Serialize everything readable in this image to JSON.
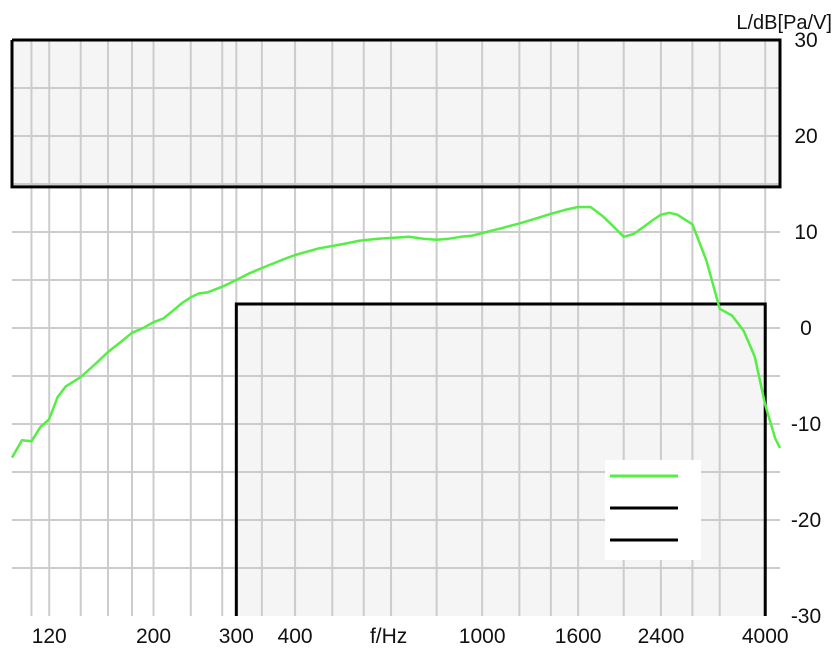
{
  "chart_data": {
    "type": "line",
    "title": "",
    "xlabel": "f/Hz",
    "ylabel": "L/dB[Pa/V]",
    "x_scale": "log",
    "xlim": [
      100,
      4300
    ],
    "ylim": [
      -30,
      30
    ],
    "grid": true,
    "legend_position": "bottom-right",
    "x_tick_labels": [
      "120",
      "200",
      "300",
      "400",
      "f/Hz",
      "1000",
      "1600",
      "2400",
      "4000"
    ],
    "x_tick_values": [
      120,
      200,
      300,
      400,
      null,
      1000,
      1600,
      2400,
      4000
    ],
    "x_gridlines": [
      110,
      120,
      140,
      160,
      180,
      200,
      240,
      280,
      300,
      340,
      400,
      480,
      560,
      640,
      800,
      1000,
      1200,
      1400,
      1600,
      2000,
      2400,
      2800,
      3200,
      4000
    ],
    "y_ticks": [
      30,
      20,
      10,
      0,
      -10,
      -20,
      -30
    ],
    "colors": {
      "response": "#55ee44",
      "limit": "#000000",
      "limit_fill": "#f5f5f5",
      "grid": "#cccccc"
    },
    "series": [
      {
        "name": "",
        "color": "#55ee44",
        "x": [
          100,
          105,
          110,
          115,
          120,
          125,
          130,
          140,
          150,
          160,
          170,
          180,
          190,
          200,
          210,
          220,
          230,
          240,
          250,
          260,
          270,
          280,
          300,
          320,
          350,
          380,
          400,
          450,
          500,
          550,
          600,
          650,
          700,
          750,
          800,
          850,
          900,
          950,
          1000,
          1100,
          1200,
          1300,
          1400,
          1500,
          1600,
          1700,
          1800,
          1900,
          2000,
          2100,
          2200,
          2300,
          2400,
          2500,
          2600,
          2800,
          3000,
          3200,
          3400,
          3600,
          3800,
          4000,
          4200,
          4300
        ],
        "y": [
          -13.5,
          -11.7,
          -11.8,
          -10.3,
          -9.5,
          -7.2,
          -6.1,
          -5.1,
          -3.8,
          -2.5,
          -1.5,
          -0.5,
          0.0,
          0.6,
          1.0,
          1.8,
          2.6,
          3.2,
          3.6,
          3.7,
          4.0,
          4.3,
          5.0,
          5.7,
          6.5,
          7.2,
          7.6,
          8.3,
          8.7,
          9.1,
          9.3,
          9.4,
          9.5,
          9.3,
          9.2,
          9.3,
          9.5,
          9.6,
          9.9,
          10.4,
          10.9,
          11.4,
          11.9,
          12.3,
          12.6,
          12.6,
          11.7,
          10.6,
          9.5,
          9.8,
          10.5,
          11.2,
          11.8,
          12.0,
          11.8,
          10.8,
          7.0,
          2.0,
          1.3,
          -0.3,
          -3.0,
          -8.0,
          -11.5,
          -12.5
        ]
      }
    ],
    "limits": [
      {
        "type": "upper",
        "from": 100,
        "to": 4300,
        "y": 14.7
      },
      {
        "type": "lower",
        "from": 300,
        "to": 4000,
        "y": 2.5
      }
    ],
    "legend": {
      "entries": [
        {
          "label": "",
          "color": "#55ee44"
        },
        {
          "label": "",
          "color": "#000000"
        },
        {
          "label": "",
          "color": "#000000"
        }
      ]
    }
  }
}
